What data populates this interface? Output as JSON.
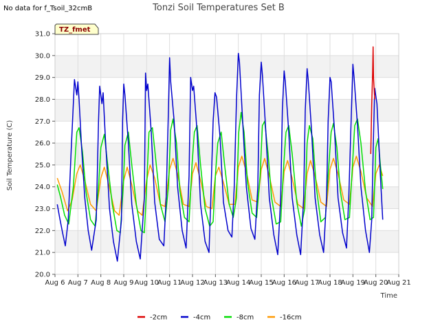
{
  "no_data_note": "No data for f_Tsoil_32cmB",
  "badge": "TZ_fmet",
  "chart_data": {
    "type": "line",
    "title": "Tonzi Soil Temperatures Set B",
    "xlabel": "Time",
    "ylabel": "Soil Temperature (C)",
    "xlim": [
      6,
      21
    ],
    "ylim": [
      20.0,
      31.0
    ],
    "x_ticks": [
      6,
      7,
      8,
      9,
      10,
      11,
      12,
      13,
      14,
      15,
      16,
      17,
      18,
      19,
      20,
      21
    ],
    "x_tick_labels": [
      "Aug 6",
      "Aug 7",
      "Aug 8",
      "Aug 9",
      "Aug 10",
      "Aug 11",
      "Aug 12",
      "Aug 13",
      "Aug 14",
      "Aug 15",
      "Aug 16",
      "Aug 17",
      "Aug 18",
      "Aug 19",
      "Aug 20",
      "Aug 21"
    ],
    "y_ticks": [
      20.0,
      21.0,
      22.0,
      23.0,
      24.0,
      25.0,
      26.0,
      27.0,
      28.0,
      29.0,
      30.0,
      31.0
    ],
    "y_tick_labels": [
      "20.0",
      "21.0",
      "22.0",
      "23.0",
      "24.0",
      "25.0",
      "26.0",
      "27.0",
      "28.0",
      "29.0",
      "30.0",
      "31.0"
    ],
    "grid": true,
    "legend_position": "bottom-center",
    "series": [
      {
        "name": "-2cm",
        "color": "#dd0000",
        "x": [
          19.78,
          19.82,
          19.86,
          19.88,
          19.9,
          19.92,
          19.95
        ],
        "y": [
          25.5,
          27.8,
          29.2,
          30.4,
          29.0,
          28.6,
          28.0
        ]
      },
      {
        "name": "-4cm",
        "color": "#0000cc",
        "x": [
          6.1,
          6.2,
          6.33,
          6.45,
          6.58,
          6.7,
          6.85,
          6.95,
          7.0,
          7.05,
          7.15,
          7.3,
          7.45,
          7.6,
          7.8,
          7.9,
          7.95,
          8.05,
          8.1,
          8.2,
          8.38,
          8.55,
          8.72,
          8.9,
          8.95,
          9.0,
          9.05,
          9.2,
          9.35,
          9.55,
          9.72,
          9.9,
          9.95,
          10.0,
          10.05,
          10.2,
          10.35,
          10.55,
          10.75,
          10.85,
          10.95,
          11.0,
          11.05,
          11.2,
          11.35,
          11.55,
          11.72,
          11.85,
          11.92,
          12.0,
          12.05,
          12.2,
          12.35,
          12.55,
          12.72,
          12.8,
          12.9,
          12.98,
          13.05,
          13.2,
          13.35,
          13.55,
          13.72,
          13.82,
          13.92,
          14.0,
          14.05,
          14.2,
          14.35,
          14.55,
          14.72,
          14.85,
          14.92,
          15.0,
          15.05,
          15.2,
          15.35,
          15.55,
          15.72,
          15.85,
          15.92,
          16.0,
          16.05,
          16.2,
          16.35,
          16.55,
          16.72,
          16.85,
          16.92,
          17.0,
          17.05,
          17.2,
          17.35,
          17.55,
          17.72,
          17.85,
          17.92,
          18.0,
          18.05,
          18.2,
          18.35,
          18.55,
          18.72,
          18.82,
          18.92,
          19.0,
          19.05,
          19.2,
          19.35,
          19.55,
          19.72,
          19.82,
          19.88,
          19.95,
          20.05,
          20.2,
          20.3
        ],
        "y": [
          23.2,
          22.6,
          21.9,
          21.3,
          22.5,
          25.5,
          28.9,
          28.2,
          28.8,
          28.0,
          26.0,
          23.5,
          22.0,
          21.1,
          22.5,
          27.0,
          28.6,
          27.8,
          28.3,
          26.2,
          23.0,
          21.5,
          20.6,
          22.5,
          27.0,
          28.7,
          28.2,
          26.0,
          23.2,
          21.5,
          20.7,
          23.5,
          29.2,
          28.4,
          28.7,
          26.5,
          23.3,
          21.6,
          21.3,
          23.5,
          27.5,
          29.9,
          28.8,
          27.0,
          24.0,
          22.0,
          21.2,
          24.5,
          29.0,
          28.4,
          28.6,
          26.5,
          23.2,
          21.5,
          21.0,
          23.5,
          27.0,
          28.3,
          28.1,
          26.3,
          23.3,
          22.0,
          21.7,
          24.0,
          28.0,
          30.1,
          29.7,
          26.8,
          24.0,
          22.1,
          21.6,
          24.0,
          28.2,
          29.7,
          29.1,
          26.5,
          23.5,
          21.8,
          20.9,
          23.5,
          27.5,
          29.3,
          28.8,
          26.5,
          23.5,
          21.8,
          20.9,
          23.5,
          27.5,
          29.4,
          28.9,
          26.5,
          23.5,
          21.8,
          21.0,
          23.5,
          27.0,
          29.0,
          28.8,
          26.5,
          23.5,
          21.9,
          21.2,
          23.5,
          27.0,
          29.6,
          29.0,
          26.8,
          24.0,
          22.0,
          21.0,
          22.5,
          25.5,
          28.5,
          27.8,
          24.5,
          22.5
        ]
      },
      {
        "name": "-8cm",
        "color": "#00dd00",
        "x": [
          6.1,
          6.25,
          6.42,
          6.6,
          6.8,
          6.95,
          7.05,
          7.2,
          7.35,
          7.55,
          7.75,
          7.9,
          8.0,
          8.15,
          8.3,
          8.5,
          8.7,
          8.85,
          8.98,
          9.05,
          9.2,
          9.35,
          9.55,
          9.75,
          9.9,
          10.0,
          10.1,
          10.25,
          10.4,
          10.6,
          10.8,
          10.95,
          11.05,
          11.15,
          11.3,
          11.45,
          11.65,
          11.85,
          11.98,
          12.08,
          12.2,
          12.35,
          12.55,
          12.75,
          12.9,
          13.0,
          13.1,
          13.25,
          13.4,
          13.6,
          13.78,
          13.92,
          14.02,
          14.12,
          14.25,
          14.4,
          14.6,
          14.8,
          14.95,
          15.05,
          15.15,
          15.3,
          15.45,
          15.65,
          15.85,
          15.98,
          16.08,
          16.2,
          16.35,
          16.55,
          16.75,
          16.9,
          17.0,
          17.1,
          17.25,
          17.4,
          17.6,
          17.8,
          17.95,
          18.05,
          18.15,
          18.3,
          18.45,
          18.65,
          18.85,
          18.98,
          19.08,
          19.2,
          19.35,
          19.55,
          19.75,
          19.9,
          20.0,
          20.1,
          20.2,
          20.3
        ],
        "y": [
          24.1,
          23.5,
          22.7,
          22.3,
          24.0,
          26.5,
          26.7,
          25.6,
          23.8,
          22.5,
          22.2,
          24.0,
          25.8,
          26.4,
          25.0,
          23.2,
          22.0,
          21.9,
          24.0,
          25.9,
          26.5,
          25.0,
          23.2,
          22.0,
          21.9,
          24.0,
          26.5,
          26.7,
          25.2,
          23.2,
          22.4,
          24.0,
          26.6,
          27.1,
          26.0,
          23.8,
          22.6,
          22.4,
          25.0,
          26.5,
          26.8,
          25.0,
          23.0,
          22.2,
          22.4,
          24.5,
          26.0,
          26.5,
          25.0,
          23.2,
          22.6,
          23.5,
          26.5,
          27.4,
          26.5,
          24.2,
          22.8,
          22.6,
          24.5,
          26.8,
          27.0,
          25.5,
          23.5,
          22.3,
          22.4,
          25.0,
          26.5,
          26.8,
          25.5,
          23.3,
          22.2,
          23.0,
          26.0,
          26.8,
          26.2,
          24.0,
          22.4,
          22.6,
          25.0,
          26.5,
          26.9,
          25.8,
          23.8,
          22.5,
          22.6,
          25.0,
          26.8,
          27.1,
          26.0,
          23.8,
          22.5,
          22.6,
          25.8,
          26.2,
          25.0,
          23.9
        ]
      },
      {
        "name": "-16cm",
        "color": "#ff9900",
        "x": [
          6.1,
          6.3,
          6.55,
          6.75,
          6.95,
          7.1,
          7.3,
          7.55,
          7.8,
          8.0,
          8.15,
          8.35,
          8.6,
          8.8,
          9.0,
          9.15,
          9.35,
          9.6,
          9.8,
          10.0,
          10.15,
          10.35,
          10.6,
          10.8,
          11.0,
          11.15,
          11.35,
          11.6,
          11.85,
          12.0,
          12.15,
          12.35,
          12.6,
          12.85,
          13.0,
          13.15,
          13.35,
          13.6,
          13.85,
          14.0,
          14.15,
          14.35,
          14.6,
          14.85,
          15.0,
          15.15,
          15.35,
          15.6,
          15.85,
          16.0,
          16.15,
          16.35,
          16.6,
          16.85,
          17.0,
          17.15,
          17.35,
          17.6,
          17.85,
          18.0,
          18.15,
          18.35,
          18.6,
          18.85,
          19.0,
          19.15,
          19.35,
          19.6,
          19.85,
          20.0,
          20.15,
          20.3
        ],
        "y": [
          24.4,
          23.8,
          22.9,
          23.4,
          24.6,
          25.0,
          24.3,
          23.2,
          22.9,
          24.4,
          24.9,
          24.1,
          22.9,
          22.7,
          24.3,
          24.9,
          24.1,
          22.9,
          22.7,
          24.3,
          25.0,
          24.4,
          23.2,
          23.1,
          24.8,
          25.3,
          24.6,
          23.2,
          23.1,
          24.6,
          25.1,
          24.3,
          23.1,
          23.0,
          24.5,
          24.9,
          24.2,
          23.2,
          23.2,
          24.9,
          25.4,
          24.7,
          23.4,
          23.3,
          24.8,
          25.3,
          24.5,
          23.3,
          23.1,
          24.7,
          25.2,
          24.4,
          23.2,
          23.0,
          24.6,
          25.2,
          24.5,
          23.3,
          23.1,
          24.8,
          25.3,
          24.6,
          23.4,
          23.2,
          24.9,
          25.4,
          24.7,
          23.5,
          23.1,
          24.6,
          25.0,
          24.5
        ]
      }
    ]
  }
}
